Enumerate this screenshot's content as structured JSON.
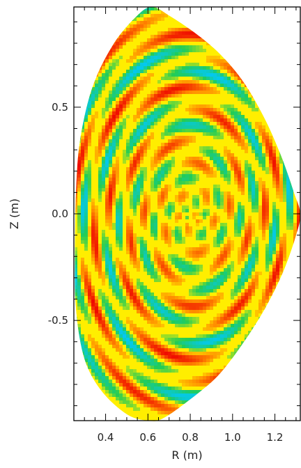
{
  "chart_data": {
    "type": "heatmap",
    "title": "",
    "xlabel": "R (m)",
    "ylabel": "Z (m)",
    "xlim": [
      0.25,
      1.32
    ],
    "ylim": [
      -0.97,
      0.97
    ],
    "xticks": [
      {
        "value": 0.4,
        "label": "0.4"
      },
      {
        "value": 0.6,
        "label": "0.6"
      },
      {
        "value": 0.8,
        "label": "0.8"
      },
      {
        "value": 1.0,
        "label": "1.0"
      },
      {
        "value": 1.2,
        "label": "1.2"
      }
    ],
    "yticks": [
      {
        "value": 0.5,
        "label": "0.5"
      },
      {
        "value": 0.0,
        "label": "0.0"
      },
      {
        "value": -0.5,
        "label": "-0.5"
      }
    ],
    "colormap": [
      "#0000ff",
      "#00c8ff",
      "#22cc55",
      "#ffee00",
      "#ff8800",
      "#ee0000"
    ],
    "background_color": "#ffee00",
    "boundary": [
      [
        0.62,
        0.97
      ],
      [
        0.7,
        0.93
      ],
      [
        0.82,
        0.85
      ],
      [
        0.94,
        0.75
      ],
      [
        1.05,
        0.62
      ],
      [
        1.15,
        0.45
      ],
      [
        1.23,
        0.27
      ],
      [
        1.29,
        0.1
      ],
      [
        1.32,
        0.0
      ],
      [
        1.3,
        -0.1
      ],
      [
        1.24,
        -0.27
      ],
      [
        1.15,
        -0.45
      ],
      [
        1.04,
        -0.62
      ],
      [
        0.93,
        -0.76
      ],
      [
        0.8,
        -0.87
      ],
      [
        0.67,
        -0.96
      ],
      [
        0.6,
        -0.97
      ],
      [
        0.5,
        -0.94
      ],
      [
        0.38,
        -0.83
      ],
      [
        0.3,
        -0.68
      ],
      [
        0.26,
        -0.45
      ],
      [
        0.255,
        -0.2
      ],
      [
        0.26,
        0.1
      ],
      [
        0.28,
        0.35
      ],
      [
        0.34,
        0.6
      ],
      [
        0.44,
        0.8
      ],
      [
        0.55,
        0.93
      ]
    ]
  }
}
